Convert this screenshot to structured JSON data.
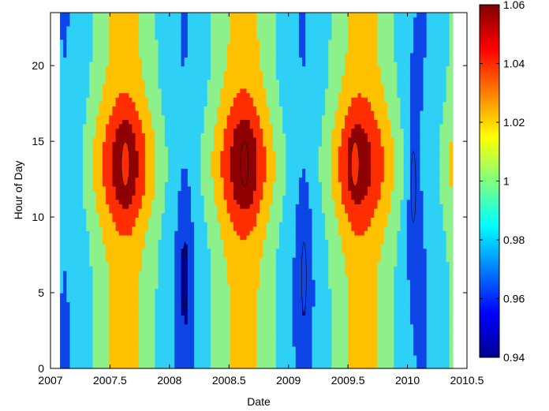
{
  "chart_data": {
    "type": "contour",
    "title": "",
    "xlabel": "Date",
    "ylabel": "Hour of Day",
    "xlim": [
      2007,
      2010.5
    ],
    "ylim": [
      0,
      23.5
    ],
    "x_data_range": [
      2007.08,
      2010.38
    ],
    "xticks": [
      "2007",
      "2007.5",
      "2008",
      "2008.5",
      "2009",
      "2009.5",
      "2010",
      "2010.5"
    ],
    "yticks": [
      "0",
      "5",
      "10",
      "15",
      "20"
    ],
    "colorbar": {
      "min": 0.94,
      "max": 1.06,
      "ticks": [
        "0.94",
        "0.96",
        "0.98",
        "1",
        "1.02",
        "1.04",
        "1.06"
      ],
      "colormap": "jet"
    },
    "contour_levels": [
      0.95,
      0.97,
      0.99,
      1.01,
      1.03,
      1.05
    ],
    "level_colors": [
      "#00008f",
      "#0d45e6",
      "#2fd0f5",
      "#8cf18a",
      "#ffc000",
      "#ff2e00",
      "#8f0000"
    ],
    "features": [
      {
        "type": "peak",
        "x": 2007.63,
        "hour": 13.5,
        "value": 1.045
      },
      {
        "type": "peak",
        "x": 2008.63,
        "hour": 13.5,
        "value": 1.055
      },
      {
        "type": "peak",
        "x": 2009.56,
        "hour": 13.5,
        "value": 1.04
      },
      {
        "type": "trough",
        "x": 2008.13,
        "hour": 6,
        "value": 0.945
      },
      {
        "type": "trough",
        "x": 2009.13,
        "hour": 6,
        "value": 0.95
      },
      {
        "type": "trough",
        "x": 2010.05,
        "hour": 12,
        "value": 0.955
      }
    ],
    "grid": false
  }
}
